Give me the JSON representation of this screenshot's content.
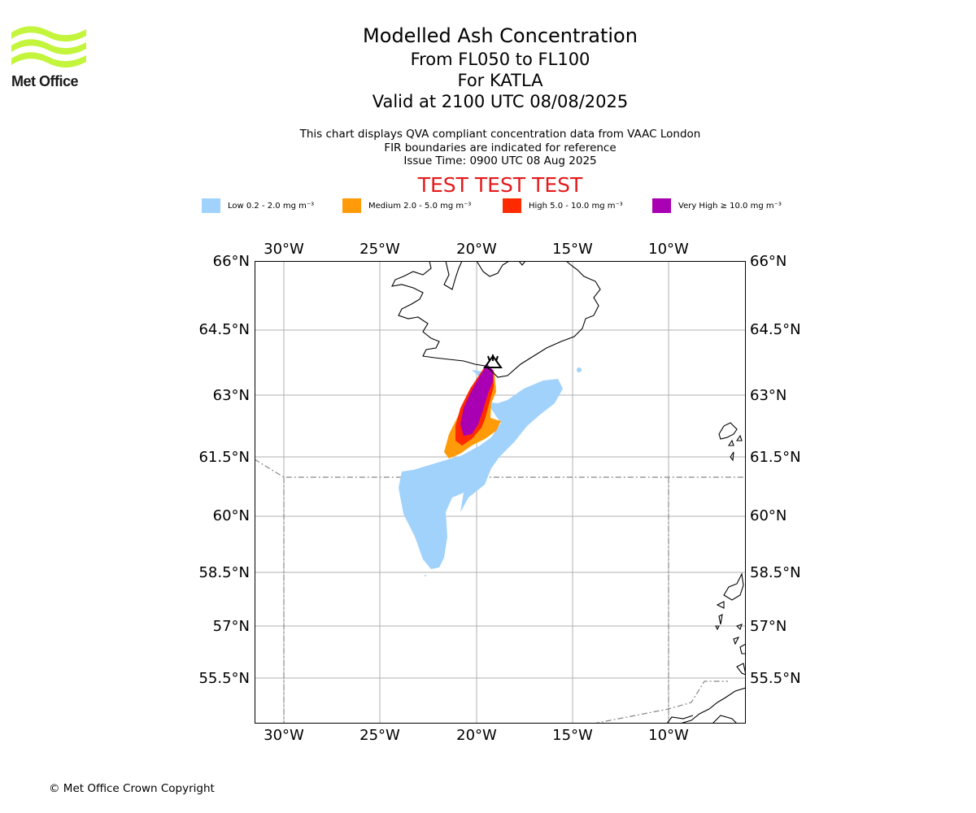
{
  "brand": {
    "name": "Met Office",
    "logo_color": "#c3f53c"
  },
  "title": {
    "line1": "Modelled Ash Concentration",
    "line2": "From FL050 to FL100",
    "line3": "For KATLA",
    "line4": "Valid at 2100 UTC 08/08/2025"
  },
  "subtitle": {
    "line1": "This chart displays QVA compliant concentration data from VAAC London",
    "line2": "FIR boundaries are indicated for reference",
    "line3": "Issue Time: 0900 UTC 08 Aug 2025"
  },
  "test_banner": "TEST TEST TEST",
  "legend": [
    {
      "label": "Low 0.2 - 2.0 mg m⁻³",
      "color": "#a0d2fc"
    },
    {
      "label": "Medium 2.0 - 5.0 mg m⁻³",
      "color": "#ff9a08"
    },
    {
      "label": "High 5.0 - 10.0 mg m⁻³",
      "color": "#ff2a00"
    },
    {
      "label": "Very High  ≥  10.0 mg m⁻³",
      "color": "#aa00b4"
    }
  ],
  "map": {
    "lon_range": [
      -31.5,
      -6.0
    ],
    "lat_range": [
      54.5,
      66.0
    ],
    "lon_ticks": [
      "30°W",
      "25°W",
      "20°W",
      "15°W",
      "10°W"
    ],
    "lat_ticks": [
      "66°N",
      "64.5°N",
      "63°N",
      "61.5°N",
      "60°N",
      "58.5°N",
      "57°N",
      "55.5°N"
    ],
    "volcano": "KATLA"
  },
  "copyright": "© Met Office Crown Copyright"
}
